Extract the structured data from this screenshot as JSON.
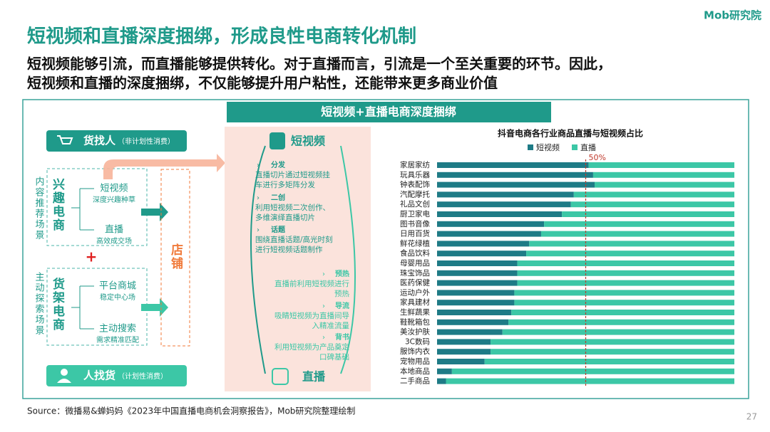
{
  "header": {
    "logo": "Mob研究院",
    "title": "短视频和直播深度捆绑，形成良性电商转化机制",
    "subtitle_lines": [
      "短视频能够引流，而直播能够提供转化。对于直播而言，引流是一个至关重要的环节。因此，",
      "短视频和直播的深度捆绑，不仅能够提升用户粘性，还能带来更多商业价值"
    ]
  },
  "diagram": {
    "banner": "短视频+直播电商深度捆绑",
    "goods_find_people": {
      "label": "货找人",
      "note": "（非计划性消费）"
    },
    "people_find_goods": {
      "label": "人找货",
      "note": "（计划性消费）"
    },
    "interest_scene": "内容推荐场景",
    "interest_ecommerce": {
      "label": "兴趣电商",
      "items": [
        {
          "name": "短视频",
          "note": "深度兴趣种草"
        },
        {
          "name": "直播",
          "note": "高效成交场"
        }
      ]
    },
    "plus": "+",
    "shelf_scene": "主动探索场景",
    "shelf_ecommerce": {
      "label": "货架电商",
      "items": [
        {
          "name": "平台商城",
          "note": "稳定中心场"
        },
        {
          "name": "主动搜索",
          "note": "需求精准匹配"
        }
      ]
    },
    "store": "店铺",
    "short_video": "短视频",
    "live": "直播",
    "short_to_live": [
      {
        "name": "分发",
        "lines": [
          "直播切片通过短视频挂",
          "车进行多矩阵分发"
        ]
      },
      {
        "name": "二创",
        "lines": [
          "利用短视频二次创作、",
          "多维演绎直播切片"
        ]
      },
      {
        "name": "话题",
        "lines": [
          "围绕直播话题/高光时刻",
          "进行短视频话题制作"
        ]
      }
    ],
    "live_from_short": [
      {
        "name": "预热",
        "lines": [
          "直播前利用短视频进行",
          "预热"
        ]
      },
      {
        "name": "导流",
        "lines": [
          "吸睛短视频为直播间导",
          "入精准流量"
        ]
      },
      {
        "name": "背书",
        "lines": [
          "利用短视频为产品奠定",
          "口碑基础"
        ]
      }
    ]
  },
  "chart_data": {
    "type": "stacked-barh",
    "title": "抖音电商各行业商品直播与短视频占比",
    "categories": [
      "家居家纺",
      "玩具乐器",
      "钟表配饰",
      "汽配摩托",
      "礼品文创",
      "厨卫家电",
      "图书音像",
      "日用百货",
      "鲜花绿植",
      "食品饮料",
      "母婴用品",
      "珠宝饰品",
      "医药保健",
      "运动户外",
      "家具建材",
      "生鲜蔬果",
      "鞋靴箱包",
      "美汝护肤",
      "3C数码",
      "服饰内衣",
      "宠物用品",
      "本地商品",
      "二手商品"
    ],
    "series": [
      {
        "name": "短视频",
        "color": "#1e7b86",
        "values": [
          51,
          52.5,
          53,
          46,
          45,
          42,
          36,
          35,
          31,
          30,
          27,
          27,
          27,
          26,
          26,
          25,
          24,
          22,
          18,
          18,
          16,
          5,
          3
        ]
      },
      {
        "name": "直播",
        "color": "#3cc7a6",
        "values": [
          49,
          47.5,
          47,
          54,
          55,
          58,
          64,
          65,
          69,
          70,
          73,
          73,
          73,
          74,
          74,
          75,
          76,
          78,
          82,
          82,
          84,
          95,
          97
        ]
      }
    ],
    "xlim": [
      0,
      100
    ],
    "reference_line": {
      "value": 50,
      "label": "50%",
      "color": "#c0392b"
    }
  },
  "footer": {
    "source": "Source：微播易&蝉妈妈《2023年中国直播电商机会洞察报告》，Mob研究院整理绘制",
    "page": "27"
  }
}
